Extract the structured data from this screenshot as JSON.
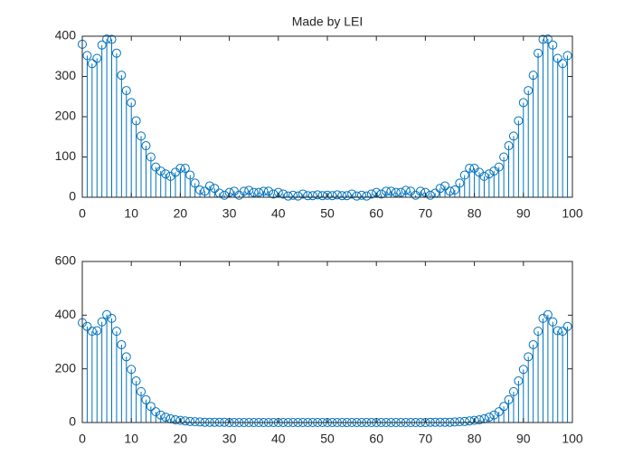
{
  "chart_data": [
    {
      "type": "stem",
      "title": "Made by LEI",
      "color": "#0072bd",
      "x": [
        0,
        1,
        2,
        3,
        4,
        5,
        6,
        7,
        8,
        9,
        10,
        11,
        12,
        13,
        14,
        15,
        16,
        17,
        18,
        19,
        20,
        21,
        22,
        23,
        24,
        25,
        26,
        27,
        28,
        29,
        30,
        31,
        32,
        33,
        34,
        35,
        36,
        37,
        38,
        39,
        40,
        41,
        42,
        43,
        44,
        45,
        46,
        47,
        48,
        49,
        50,
        51,
        52,
        53,
        54,
        55,
        56,
        57,
        58,
        59,
        60,
        61,
        62,
        63,
        64,
        65,
        66,
        67,
        68,
        69,
        70,
        71,
        72,
        73,
        74,
        75,
        76,
        77,
        78,
        79,
        80,
        81,
        82,
        83,
        84,
        85,
        86,
        87,
        88,
        89,
        90,
        91,
        92,
        93,
        94,
        95,
        96,
        97,
        98,
        99
      ],
      "values": [
        380,
        352,
        332,
        345,
        378,
        393,
        392,
        358,
        303,
        265,
        235,
        190,
        152,
        128,
        100,
        75,
        65,
        58,
        52,
        62,
        72,
        72,
        55,
        35,
        18,
        15,
        28,
        22,
        10,
        5,
        12,
        15,
        5,
        15,
        17,
        12,
        12,
        15,
        15,
        8,
        12,
        8,
        3,
        5,
        3,
        8,
        4,
        4,
        6,
        4,
        5,
        4,
        6,
        4,
        4,
        8,
        3,
        5,
        3,
        8,
        12,
        8,
        15,
        15,
        12,
        12,
        17,
        15,
        5,
        15,
        12,
        5,
        10,
        22,
        28,
        15,
        18,
        35,
        55,
        72,
        72,
        62,
        52,
        58,
        65,
        75,
        100,
        128,
        152,
        190,
        235,
        265,
        303,
        358,
        392,
        393,
        378,
        345,
        332,
        352
      ],
      "xlim": [
        0,
        100
      ],
      "xticks": [
        0,
        10,
        20,
        30,
        40,
        50,
        60,
        70,
        80,
        90,
        100
      ],
      "ylim": [
        0,
        400
      ],
      "yticks": [
        0,
        100,
        200,
        300,
        400
      ]
    },
    {
      "type": "stem",
      "color": "#0072bd",
      "x": [
        0,
        1,
        2,
        3,
        4,
        5,
        6,
        7,
        8,
        9,
        10,
        11,
        12,
        13,
        14,
        15,
        16,
        17,
        18,
        19,
        20,
        21,
        22,
        23,
        24,
        25,
        26,
        27,
        28,
        29,
        30,
        31,
        32,
        33,
        34,
        35,
        36,
        37,
        38,
        39,
        40,
        41,
        42,
        43,
        44,
        45,
        46,
        47,
        48,
        49,
        50,
        51,
        52,
        53,
        54,
        55,
        56,
        57,
        58,
        59,
        60,
        61,
        62,
        63,
        64,
        65,
        66,
        67,
        68,
        69,
        70,
        71,
        72,
        73,
        74,
        75,
        76,
        77,
        78,
        79,
        80,
        81,
        82,
        83,
        84,
        85,
        86,
        87,
        88,
        89,
        90,
        91,
        92,
        93,
        94,
        95,
        96,
        97,
        98,
        99
      ],
      "values": [
        372,
        358,
        340,
        342,
        375,
        402,
        388,
        340,
        290,
        245,
        198,
        155,
        115,
        85,
        60,
        40,
        28,
        20,
        14,
        10,
        8,
        6,
        4,
        3,
        2,
        1,
        1,
        1,
        1,
        1,
        0,
        0,
        0,
        0,
        0,
        0,
        0,
        0,
        0,
        0,
        0,
        0,
        0,
        0,
        0,
        0,
        0,
        0,
        0,
        0,
        0,
        0,
        0,
        0,
        0,
        0,
        0,
        0,
        0,
        0,
        0,
        0,
        0,
        0,
        0,
        0,
        0,
        0,
        0,
        0,
        0,
        1,
        1,
        1,
        1,
        1,
        2,
        3,
        4,
        6,
        8,
        10,
        14,
        20,
        28,
        40,
        60,
        85,
        115,
        155,
        198,
        245,
        290,
        340,
        388,
        402,
        375,
        342,
        340,
        358
      ],
      "xlim": [
        0,
        100
      ],
      "xticks": [
        0,
        10,
        20,
        30,
        40,
        50,
        60,
        70,
        80,
        90,
        100
      ],
      "ylim": [
        0,
        600
      ],
      "yticks": [
        0,
        200,
        400,
        600
      ]
    }
  ]
}
